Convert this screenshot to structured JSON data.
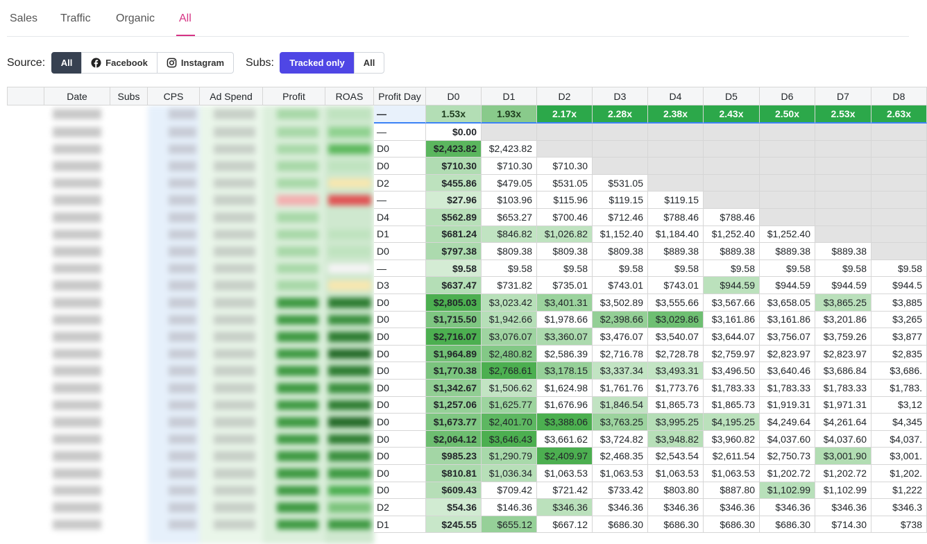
{
  "tabs": [
    "Sales",
    "Traffic",
    "Organic",
    "All"
  ],
  "filters": {
    "source_label": "Source:",
    "source_options": [
      "All",
      "Facebook",
      "Instagram"
    ],
    "subs_label": "Subs:",
    "subs_options": [
      "Tracked only",
      "All"
    ]
  },
  "table": {
    "columns": [
      "Date",
      "Subs",
      "CPS",
      "Ad Spend",
      "Profit",
      "ROAS",
      "Profit Day",
      "D0",
      "D1",
      "D2",
      "D3",
      "D4",
      "D5",
      "D6",
      "D7",
      "D8"
    ],
    "total": {
      "profit_day": "—",
      "values": [
        "1.53x",
        "1.93x",
        "2.17x",
        "2.28x",
        "2.38x",
        "2.43x",
        "2.50x",
        "2.53x",
        "2.63x"
      ]
    },
    "rows": [
      [
        "—",
        "$0.00",
        null,
        null,
        null,
        null,
        null,
        null,
        null,
        null
      ],
      [
        "D0",
        "$2,423.82",
        "$2,423.82",
        null,
        null,
        null,
        null,
        null,
        null,
        null
      ],
      [
        "D0",
        "$710.30",
        "$710.30",
        "$710.30",
        null,
        null,
        null,
        null,
        null,
        null
      ],
      [
        "D2",
        "$455.86",
        "$479.05",
        "$531.05",
        "$531.05",
        null,
        null,
        null,
        null,
        null
      ],
      [
        "—",
        "$27.96",
        "$103.96",
        "$115.96",
        "$119.15",
        "$119.15",
        null,
        null,
        null,
        null
      ],
      [
        "D4",
        "$562.89",
        "$653.27",
        "$700.46",
        "$712.46",
        "$788.46",
        "$788.46",
        null,
        null,
        null
      ],
      [
        "D1",
        "$681.24",
        "$846.82",
        "$1,026.82",
        "$1,152.40",
        "$1,184.40",
        "$1,252.40",
        "$1,252.40",
        null,
        null
      ],
      [
        "D0",
        "$797.38",
        "$809.38",
        "$809.38",
        "$809.38",
        "$889.38",
        "$889.38",
        "$889.38",
        "$889.38",
        null
      ],
      [
        "—",
        "$9.58",
        "$9.58",
        "$9.58",
        "$9.58",
        "$9.58",
        "$9.58",
        "$9.58",
        "$9.58",
        "$9.58"
      ],
      [
        "D3",
        "$637.47",
        "$731.82",
        "$735.01",
        "$743.01",
        "$743.01",
        "$944.59",
        "$944.59",
        "$944.59",
        "$944.5"
      ],
      [
        "D0",
        "$2,805.03",
        "$3,023.42",
        "$3,401.31",
        "$3,502.89",
        "$3,555.66",
        "$3,567.66",
        "$3,658.05",
        "$3,865.25",
        "$3,885"
      ],
      [
        "D0",
        "$1,715.50",
        "$1,942.66",
        "$1,978.66",
        "$2,398.66",
        "$3,029.86",
        "$3,161.86",
        "$3,161.86",
        "$3,201.86",
        "$3,265"
      ],
      [
        "D0",
        "$2,716.07",
        "$3,076.07",
        "$3,360.07",
        "$3,476.07",
        "$3,540.07",
        "$3,644.07",
        "$3,756.07",
        "$3,759.26",
        "$3,877"
      ],
      [
        "D0",
        "$1,964.89",
        "$2,480.82",
        "$2,586.39",
        "$2,716.78",
        "$2,728.78",
        "$2,759.97",
        "$2,823.97",
        "$2,823.97",
        "$2,835"
      ],
      [
        "D0",
        "$1,770.38",
        "$2,768.61",
        "$3,178.15",
        "$3,337.34",
        "$3,493.31",
        "$3,496.50",
        "$3,640.46",
        "$3,686.84",
        "$3,686."
      ],
      [
        "D0",
        "$1,342.67",
        "$1,506.62",
        "$1,624.98",
        "$1,761.76",
        "$1,773.76",
        "$1,783.33",
        "$1,783.33",
        "$1,783.33",
        "$1,783."
      ],
      [
        "D0",
        "$1,257.06",
        "$1,625.77",
        "$1,676.96",
        "$1,846.54",
        "$1,865.73",
        "$1,865.73",
        "$1,919.31",
        "$1,971.31",
        "$3,12"
      ],
      [
        "D0",
        "$1,673.77",
        "$2,401.70",
        "$3,388.06",
        "$3,763.25",
        "$3,995.25",
        "$4,195.25",
        "$4,249.64",
        "$4,261.64",
        "$4,345"
      ],
      [
        "D0",
        "$2,064.12",
        "$3,646.43",
        "$3,661.62",
        "$3,724.82",
        "$3,948.82",
        "$3,960.82",
        "$4,037.60",
        "$4,037.60",
        "$4,037."
      ],
      [
        "D0",
        "$985.23",
        "$1,290.79",
        "$2,409.97",
        "$2,468.35",
        "$2,543.54",
        "$2,611.54",
        "$2,750.73",
        "$3,001.90",
        "$3,001."
      ],
      [
        "D0",
        "$810.81",
        "$1,036.34",
        "$1,063.53",
        "$1,063.53",
        "$1,063.53",
        "$1,063.53",
        "$1,202.72",
        "$1,202.72",
        "$1,202."
      ],
      [
        "D0",
        "$609.43",
        "$709.42",
        "$721.42",
        "$733.42",
        "$803.80",
        "$887.80",
        "$1,102.99",
        "$1,102.99",
        "$1,222"
      ],
      [
        "D2",
        "$54.36",
        "$146.36",
        "$346.36",
        "$346.36",
        "$346.36",
        "$346.36",
        "$346.36",
        "$346.36",
        "$346.3"
      ],
      [
        "D1",
        "$245.55",
        "$655.12",
        "$667.12",
        "$686.30",
        "$686.30",
        "$686.30",
        "$686.30",
        "$714.30",
        "$738"
      ]
    ]
  }
}
